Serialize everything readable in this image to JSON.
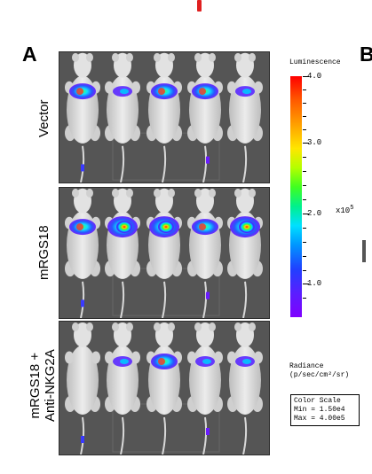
{
  "panel_letters": {
    "left": "A",
    "right": "B"
  },
  "groups": [
    {
      "label_lines": [
        "Vector"
      ]
    },
    {
      "label_lines": [
        "mRGS18"
      ]
    },
    {
      "label_lines": [
        "mRGS18 +",
        "Anti-NKG2A"
      ]
    }
  ],
  "colorbar": {
    "title": "Luminescence",
    "tick_labels": [
      "4.0",
      "3.0",
      "2.0",
      "1.0"
    ],
    "multiplier_base": "x10",
    "multiplier_exp": "5",
    "gradient_colors": [
      "#ff0000",
      "#ffa000",
      "#ffe600",
      "#40ff20",
      "#00e0ff",
      "#2040ff",
      "#8000ff"
    ]
  },
  "radiance": {
    "line1": "Radiance",
    "line2": "(p/sec/cm²/sr)"
  },
  "color_scale": {
    "title": "Color Scale",
    "min_label": "Min = 1.50e4",
    "max_label": "Max = 4.00e5"
  },
  "signal_intensity": {
    "vector": [
      "medium",
      "low",
      "medium",
      "medium",
      "low"
    ],
    "mrgs18": [
      "medium",
      "high",
      "high",
      "medium",
      "high"
    ],
    "mrgs18_anti_nkg2a": [
      "none",
      "low",
      "medium",
      "low",
      "low"
    ]
  }
}
